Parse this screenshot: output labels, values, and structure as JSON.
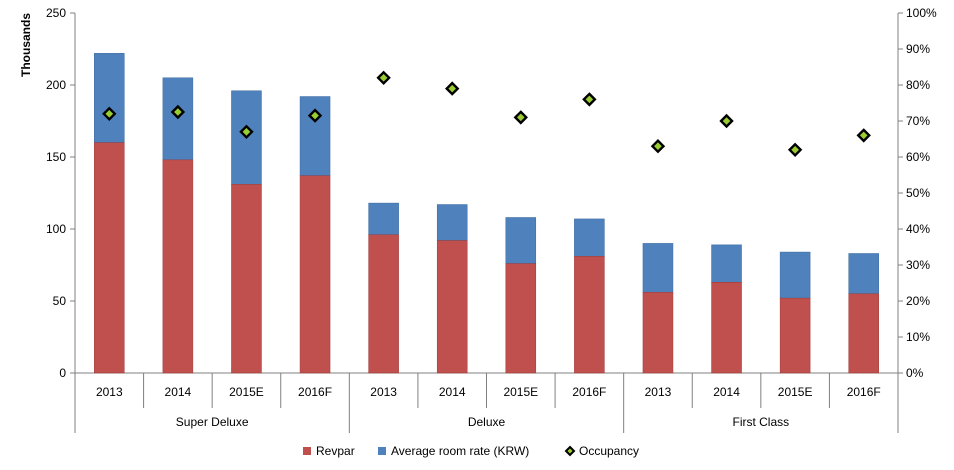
{
  "chart_data": {
    "type": "bar",
    "stacked": true,
    "ylabel": "Thousands",
    "ylim": [
      0,
      250
    ],
    "yticks": [
      0,
      50,
      100,
      150,
      200,
      250
    ],
    "y2lim": [
      0,
      1
    ],
    "y2ticks": [
      "0%",
      "10%",
      "20%",
      "30%",
      "40%",
      "50%",
      "60%",
      "70%",
      "80%",
      "90%",
      "100%"
    ],
    "categories": [
      "2013",
      "2014",
      "2015E",
      "2016F",
      "2013",
      "2014",
      "2015E",
      "2016F",
      "2013",
      "2014",
      "2015E",
      "2016F"
    ],
    "groups": [
      {
        "label": "Super Deluxe",
        "count": 4
      },
      {
        "label": "Deluxe",
        "count": 4
      },
      {
        "label": "First Class",
        "count": 4
      }
    ],
    "series": [
      {
        "name": "Revpar",
        "color": "#C0504D",
        "values": [
          160,
          148,
          131,
          137,
          96,
          92,
          76,
          81,
          56,
          63,
          52,
          55
        ]
      },
      {
        "name": "Average room rate (KRW)",
        "color": "#4F81BD",
        "values": [
          222,
          205,
          196,
          192,
          118,
          117,
          108,
          107,
          90,
          89,
          84,
          83
        ],
        "note": "total bar height"
      },
      {
        "name": "Occupancy",
        "type": "scatter",
        "axis": "secondary",
        "color": "#000000",
        "fill": "#9ACD32",
        "values": [
          0.72,
          0.725,
          0.67,
          0.715,
          0.82,
          0.79,
          0.71,
          0.76,
          0.63,
          0.7,
          0.62,
          0.66
        ]
      }
    ],
    "legend_position": "bottom",
    "grid": false
  }
}
